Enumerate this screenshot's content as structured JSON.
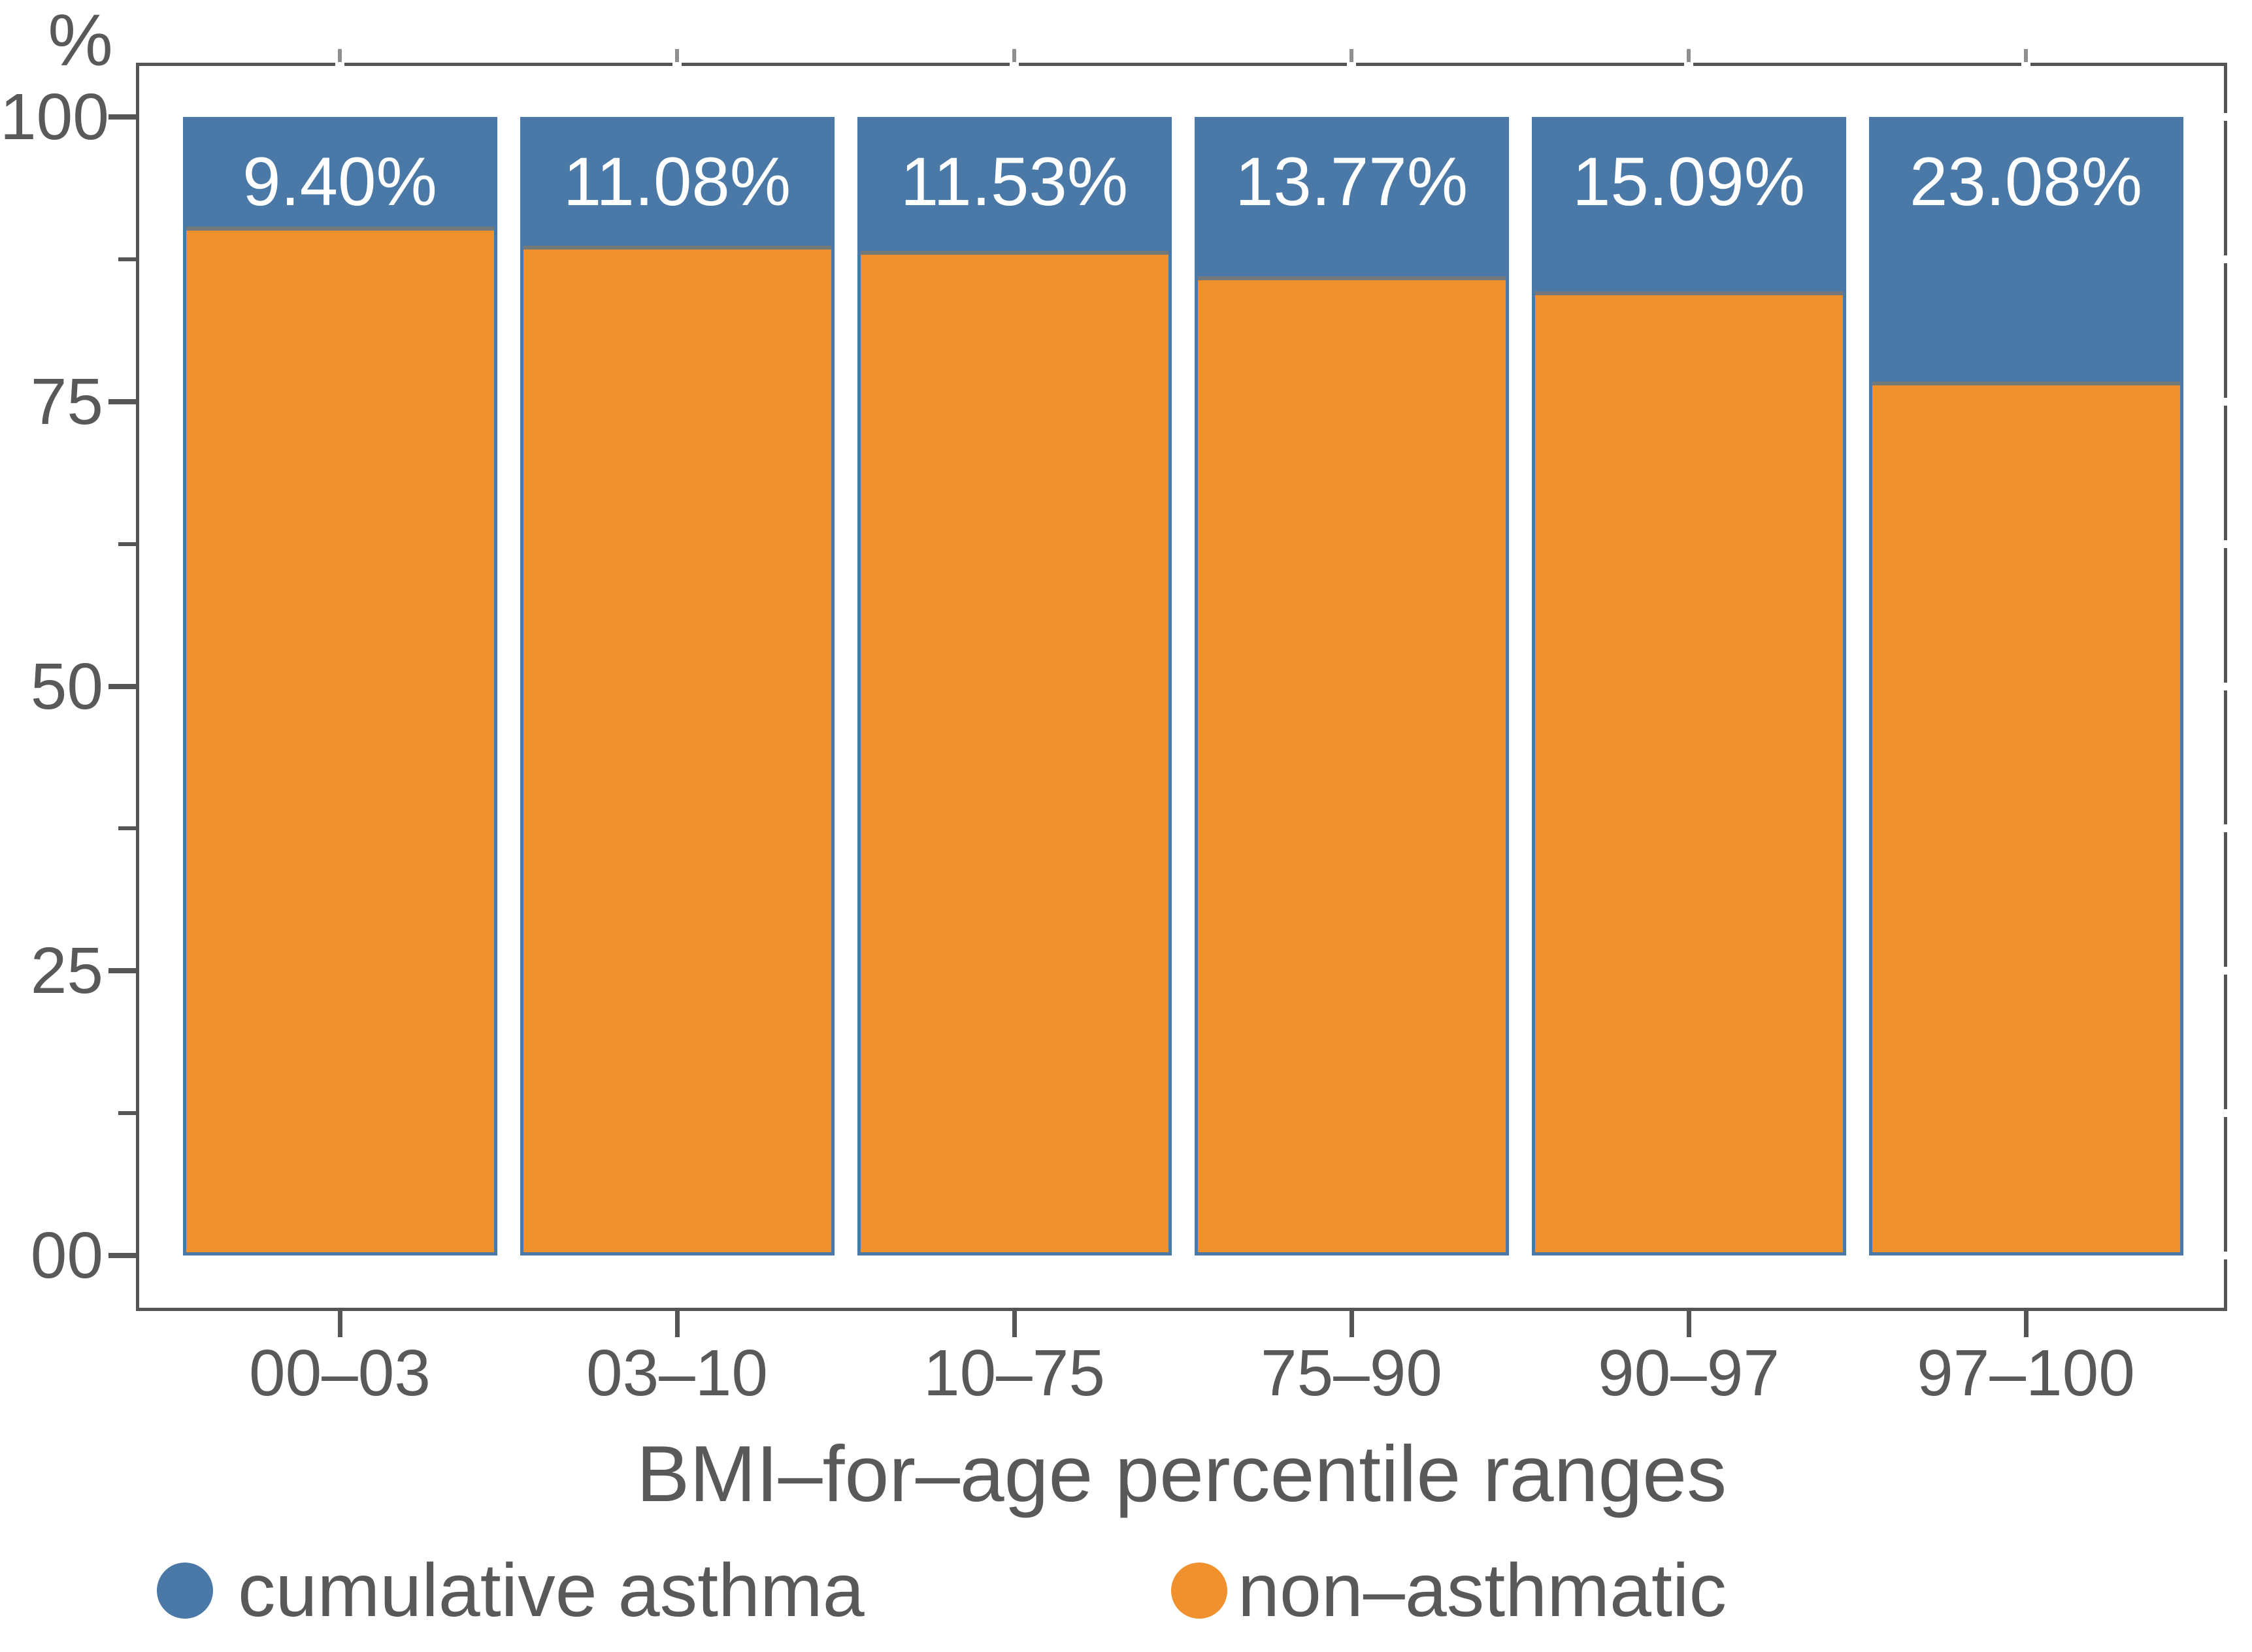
{
  "chart_data": {
    "type": "bar",
    "stacked": true,
    "unit": "percent",
    "categories": [
      "00–03",
      "03–10",
      "10–75",
      "75–90",
      "90–97",
      "97–100"
    ],
    "series": [
      {
        "name": "cumulative asthma",
        "color": "#4a79a7",
        "values": [
          9.4,
          11.08,
          11.53,
          13.77,
          15.09,
          23.08
        ]
      },
      {
        "name": "non–asthmatic",
        "color": "#f0912d",
        "values": [
          90.6,
          88.92,
          88.47,
          86.23,
          84.91,
          76.92
        ]
      }
    ],
    "bar_labels": [
      "9.40%",
      "11.08%",
      "11.53%",
      "13.77%",
      "15.09%",
      "23.08%"
    ],
    "xlabel": "BMI–for–age percentile ranges",
    "ylabel": "%",
    "ylim": [
      0,
      100
    ],
    "yticks": [
      {
        "value": 0,
        "label": "00"
      },
      {
        "value": 25,
        "label": "25"
      },
      {
        "value": 50,
        "label": "50"
      },
      {
        "value": 75,
        "label": "75"
      },
      {
        "value": 100,
        "label": "100"
      }
    ],
    "minor_yticks": [
      12.5,
      37.5,
      62.5,
      87.5
    ],
    "grid": false,
    "legend_position": "bottom",
    "colors": {
      "axis_text": "#595959",
      "axis_line": "#555555",
      "bar_border": "#4a79a7",
      "segment_divider": "#75787a",
      "bar_label_text": "#ffffff"
    }
  },
  "legend": {
    "items": [
      {
        "label": "cumulative asthma",
        "color": "#4a79a7"
      },
      {
        "label": "non–asthmatic",
        "color": "#f0912d"
      }
    ]
  }
}
